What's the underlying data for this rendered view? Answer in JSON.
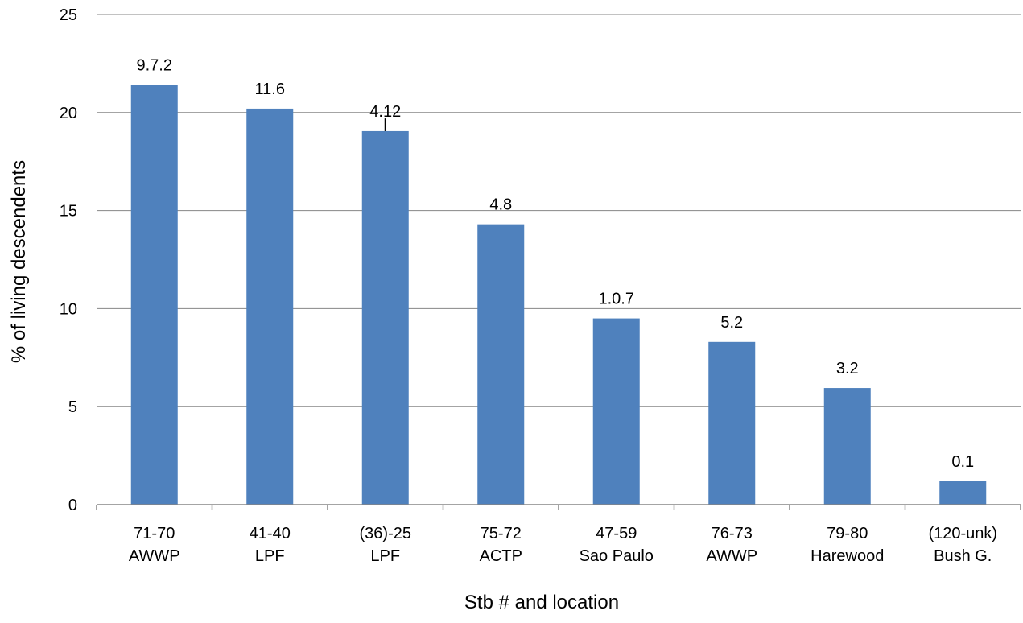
{
  "chart_data": {
    "type": "bar",
    "xlabel": "Stb # and location",
    "ylabel": "% of living descendents",
    "ylim": [
      0,
      25
    ],
    "yticks": [
      0,
      5,
      10,
      15,
      20,
      25
    ],
    "grid": true,
    "legend": "none",
    "bar_color": "#4F81BD",
    "categories": [
      [
        "71-70",
        "AWWP"
      ],
      [
        "41-40",
        "LPF"
      ],
      [
        "(36)-25",
        "LPF"
      ],
      [
        "75-72",
        "ACTP"
      ],
      [
        "47-59",
        "Sao Paulo"
      ],
      [
        "76-73",
        "AWWP"
      ],
      [
        "79-80",
        "Harewood"
      ],
      [
        "(120-unk)",
        "Bush G."
      ]
    ],
    "values": [
      21.4,
      20.2,
      19.05,
      14.3,
      9.5,
      8.3,
      5.95,
      1.2
    ],
    "data_labels": [
      "9.7.2",
      "11.6",
      "4.12",
      "4.8",
      "1.0.7",
      "5.2",
      "3.2",
      "0.1"
    ],
    "annotations": [
      {
        "category_index": 2,
        "type": "error-bar",
        "from": 19.05,
        "to": 19.7
      }
    ]
  }
}
